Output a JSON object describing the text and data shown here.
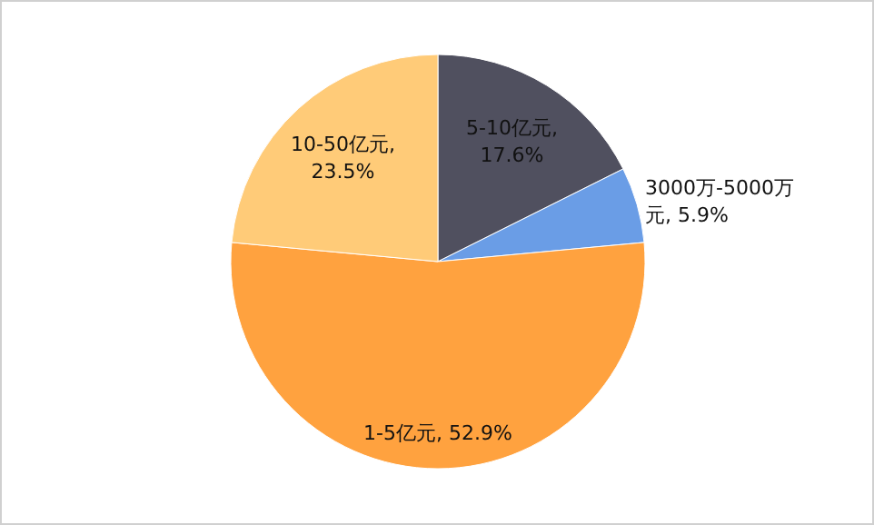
{
  "chart_data": {
    "type": "pie",
    "categories": [
      "5-10亿元",
      "3000万-5000万元",
      "1-5亿元",
      "10-50亿元"
    ],
    "values": [
      17.6,
      5.9,
      52.9,
      23.5
    ],
    "colors": [
      "#50505f",
      "#6a9de6",
      "#ffa23f",
      "#ffcb78"
    ],
    "value_labels": [
      ", 17.6%",
      ", 5.9%",
      ", 52.9%",
      ", 23.5%"
    ]
  }
}
